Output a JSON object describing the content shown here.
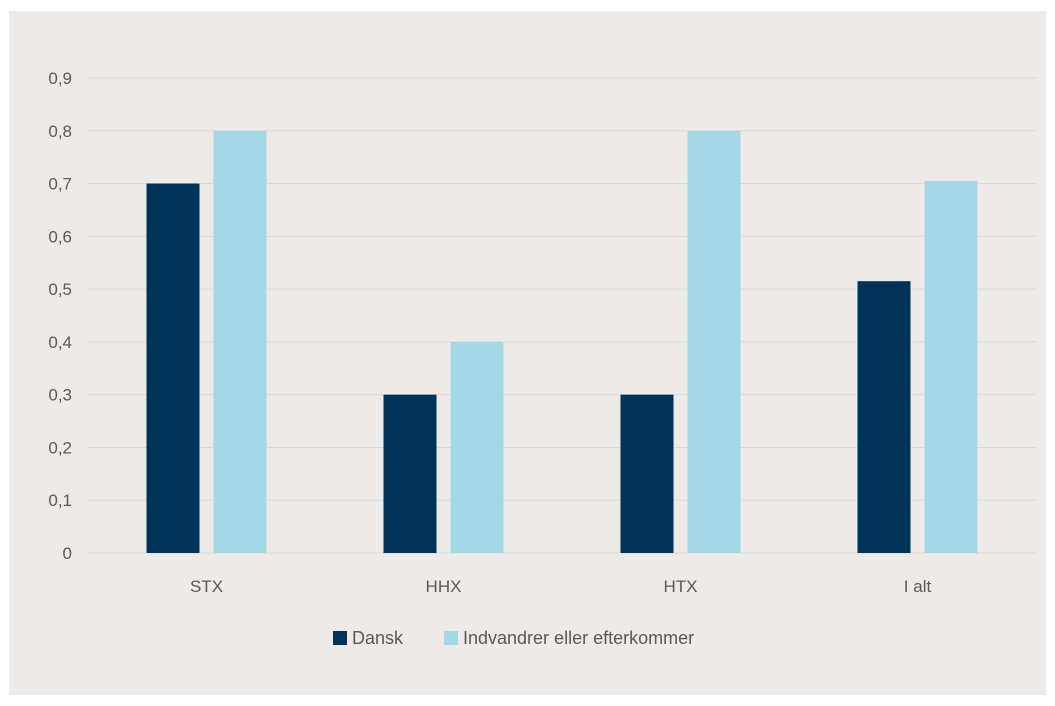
{
  "chart_data": {
    "type": "bar",
    "categories": [
      "STX",
      "HHX",
      "HTX",
      "I alt"
    ],
    "series": [
      {
        "name": "Dansk",
        "values": [
          0.7,
          0.3,
          0.3,
          0.515
        ],
        "color": "#00335a"
      },
      {
        "name": "Indvandrer eller efterkommer",
        "values": [
          0.8,
          0.4,
          0.8,
          0.705
        ],
        "color": "#a5d8e6"
      }
    ],
    "y_ticks": [
      "0",
      "0,1",
      "0,2",
      "0,3",
      "0,4",
      "0,5",
      "0,6",
      "0,7",
      "0,8",
      "0,9"
    ],
    "ylim": [
      0,
      0.9
    ],
    "grid": true,
    "legend_position": "bottom",
    "background_color": "#eeeae7",
    "grid_color": "#d9d9d9"
  }
}
